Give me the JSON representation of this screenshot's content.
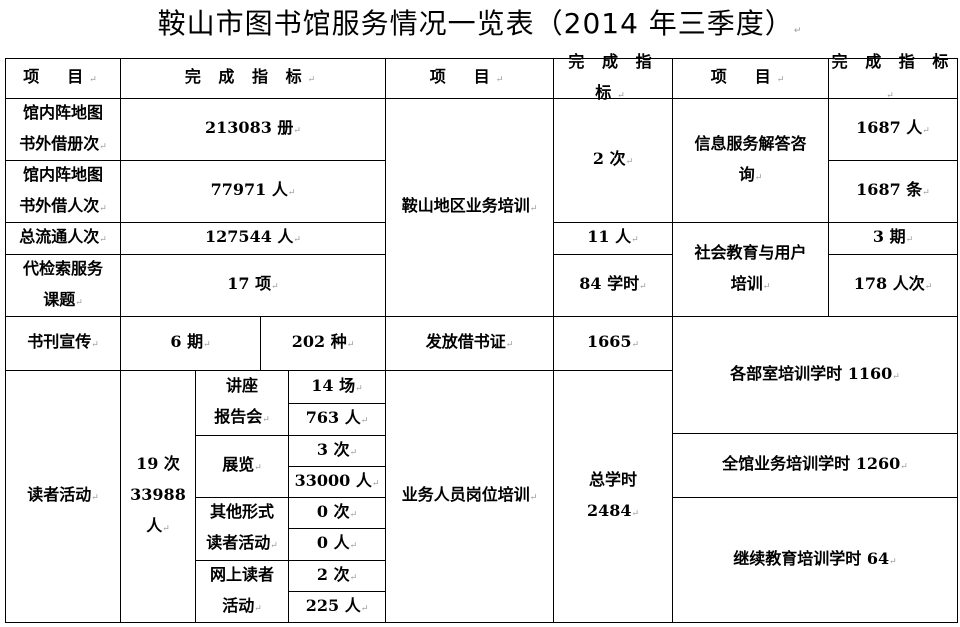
{
  "title": "鞍山市图书馆服务情况一览表（2014 年三季度）",
  "header": {
    "item": "项　目",
    "indicator": "完 成 指 标"
  },
  "rows": {
    "loan_volumes": {
      "label": "馆内阵地图\n书外借册次",
      "value": "213083 册"
    },
    "loan_persons": {
      "label": "馆内阵地图\n书外借人次",
      "value": "77971 人"
    },
    "circulation": {
      "label": "总流通人次",
      "value": "127544 人"
    },
    "retrieval": {
      "label": "代检索服务\n课题",
      "value": "17 项"
    },
    "publicity": {
      "label": "书刊宣传",
      "issues": "6 期",
      "kinds": "202 种"
    },
    "reader_activity": {
      "label": "读者活动",
      "total": "19 次\n33988 人",
      "lectures": {
        "label": "讲座\n报告会",
        "count": "14 场",
        "persons": "763 人"
      },
      "exhibitions": {
        "label": "展览",
        "count": "3 次",
        "persons": "33000 人"
      },
      "other": {
        "label": "其他形式\n读者活动",
        "count": "0 次",
        "persons": "0 人"
      },
      "online": {
        "label": "网上读者\n活动",
        "count": "2 次",
        "persons": "225 人"
      }
    },
    "regional_training": {
      "label": "鞍山地区业务培训",
      "times": "2 次",
      "persons": "11 人",
      "hours": "84 学时"
    },
    "library_cards": {
      "label": "发放借书证",
      "value": "1665"
    },
    "job_training": {
      "label": "业务人员岗位培训",
      "value": "总学时\n2484"
    },
    "info_service": {
      "label": "信息服务解答咨\n询",
      "persons": "1687 人",
      "items": "1687 条"
    },
    "social_education": {
      "label": "社会教育与用户\n培训",
      "issues": "3 期",
      "persons": "178 人次"
    },
    "dept_training": "各部室培训学时 1160",
    "library_training": "全馆业务培训学时 1260",
    "continuing_education": "继续教育培训学时 64"
  }
}
